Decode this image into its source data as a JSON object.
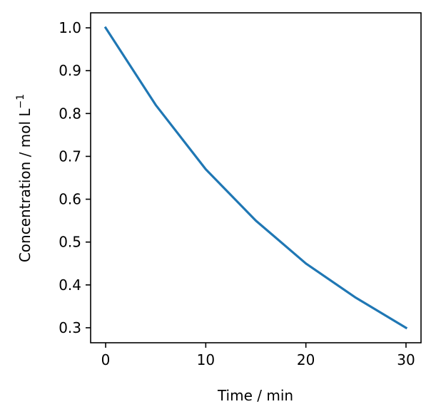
{
  "chart_data": {
    "type": "line",
    "title": "",
    "xlabel": "Time / min",
    "ylabel": "Concentration / mol L",
    "ylabel_superscript": "−1",
    "xlim": [
      -1.5,
      31.5
    ],
    "ylim": [
      0.265,
      1.035
    ],
    "x_ticks": [
      0,
      10,
      20,
      30
    ],
    "x_tick_labels": [
      "0",
      "10",
      "20",
      "30"
    ],
    "y_ticks": [
      0.3,
      0.4,
      0.5,
      0.6,
      0.7,
      0.8,
      0.9,
      1.0
    ],
    "y_tick_labels": [
      "0.3",
      "0.4",
      "0.5",
      "0.6",
      "0.7",
      "0.8",
      "0.9",
      "1.0"
    ],
    "grid": false,
    "legend": "none",
    "series": [
      {
        "color": "#1f77b4",
        "x": [
          0,
          5,
          10,
          15,
          20,
          25,
          30
        ],
        "y": [
          1.0,
          0.82,
          0.67,
          0.55,
          0.45,
          0.37,
          0.3
        ]
      }
    ]
  }
}
